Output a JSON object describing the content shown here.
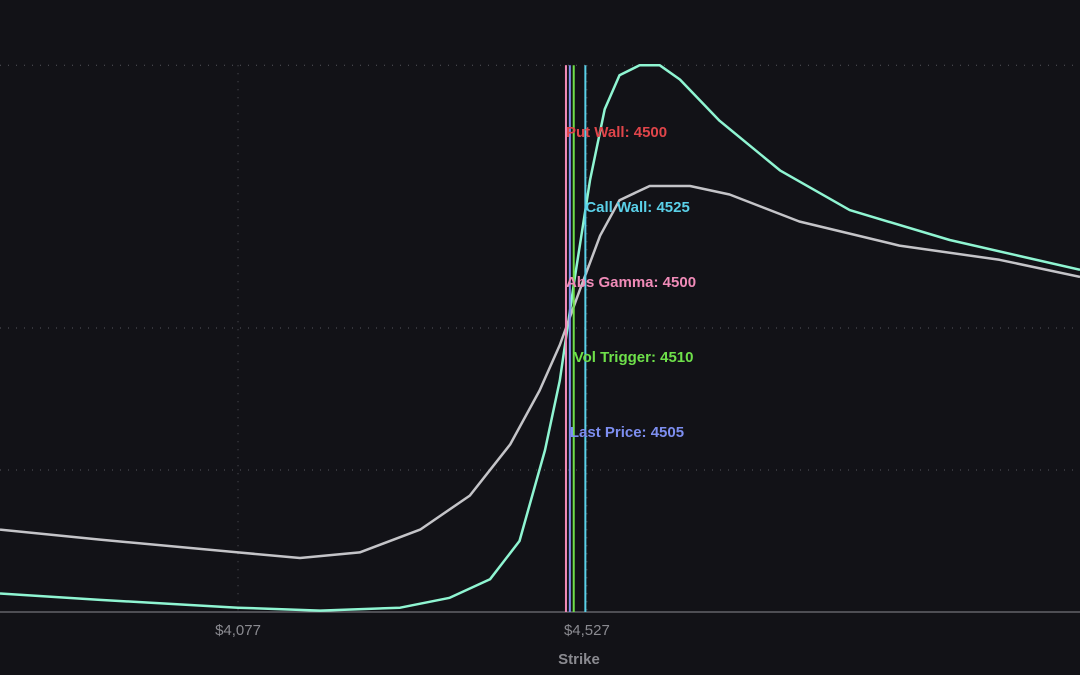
{
  "chart_data": {
    "type": "line",
    "x_label": "Strike",
    "xlim": [
      3770,
      5163
    ],
    "xticks": [
      {
        "value": 4077,
        "label": "$4,077"
      },
      {
        "value": 4527,
        "label": "$4,527"
      }
    ],
    "ylim": [
      0,
      4
    ],
    "yticks": [
      1,
      2,
      3.85
    ],
    "grid": true,
    "series": [
      {
        "color": "#8ff5d2",
        "x": [
          3770,
          3899,
          4077,
          4183,
          4286,
          4350,
          4402,
          4440,
          4473,
          4492,
          4511,
          4531,
          4550,
          4569,
          4595,
          4621,
          4647,
          4698,
          4776,
          4866,
          4995,
          5163
        ],
        "values": [
          0.13,
          0.085,
          0.03,
          0.01,
          0.03,
          0.1,
          0.23,
          0.5,
          1.14,
          1.63,
          2.34,
          3.04,
          3.54,
          3.78,
          3.85,
          3.85,
          3.75,
          3.46,
          3.11,
          2.83,
          2.62,
          2.41
        ]
      },
      {
        "color": "#c4c4c8",
        "x": [
          3770,
          3899,
          4077,
          4157,
          4234,
          4312,
          4376,
          4428,
          4466,
          4492,
          4518,
          4544,
          4569,
          4608,
          4660,
          4711,
          4801,
          4930,
          5059,
          5163
        ],
        "values": [
          0.58,
          0.51,
          0.42,
          0.38,
          0.42,
          0.58,
          0.82,
          1.18,
          1.56,
          1.88,
          2.27,
          2.65,
          2.9,
          3.0,
          3.0,
          2.94,
          2.75,
          2.58,
          2.48,
          2.36
        ]
      }
    ],
    "levels": [
      {
        "label": "Put Wall: 4500",
        "value": 4500,
        "color": "#e0454a"
      },
      {
        "label": "Call Wall: 4525",
        "value": 4525,
        "color": "#5ad0e8"
      },
      {
        "label": "Abs Gamma: 4500",
        "value": 4500,
        "color": "#f08bb8"
      },
      {
        "label": "Vol Trigger: 4510",
        "value": 4510,
        "color": "#6ee04a"
      },
      {
        "label": "Last Price: 4505",
        "value": 4505,
        "color": "#7d8ef0"
      }
    ]
  }
}
